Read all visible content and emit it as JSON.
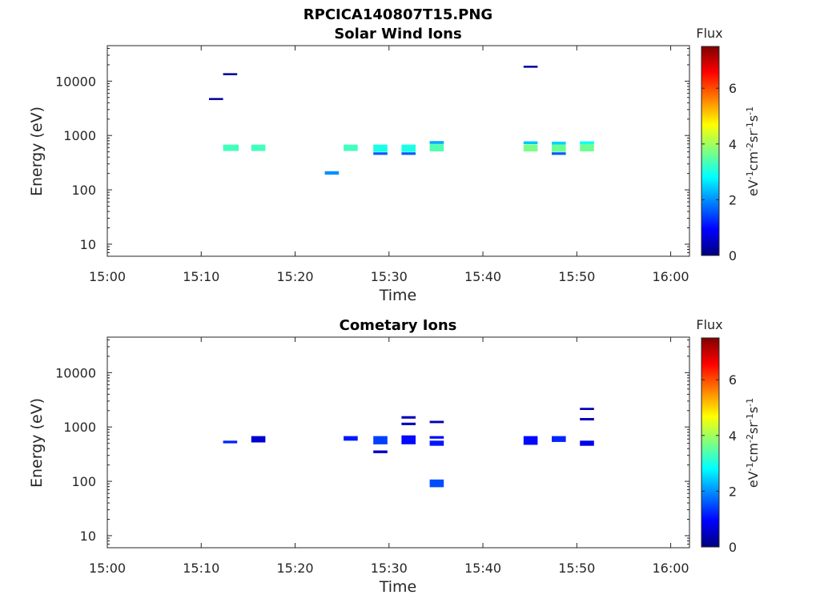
{
  "figure_title": "RPCICA140807T15.PNG",
  "colormap": [
    "#00007f",
    "#0000ff",
    "#007fff",
    "#00ffff",
    "#7fff7f",
    "#ffff00",
    "#ff7f00",
    "#ff0000",
    "#7f0000"
  ],
  "chart_data": [
    {
      "type": "heatmap",
      "title": "Solar Wind Ions",
      "xlabel": "Time",
      "ylabel": "Energy (eV)",
      "x_range": [
        "15:00",
        "16:02"
      ],
      "x_ticks": [
        "15:00",
        "15:10",
        "15:20",
        "15:30",
        "15:40",
        "15:50",
        "16:00"
      ],
      "y_scale": "log",
      "y_range": [
        6,
        45000
      ],
      "y_ticks": [
        "10",
        "100",
        "1000",
        "10000"
      ],
      "colorbar": {
        "label": "Flux",
        "units": "eV-1cm-2sr-1s-1",
        "range": [
          0,
          7.5
        ],
        "ticks": [
          "0",
          "2",
          "4",
          "6"
        ]
      },
      "cells": [
        {
          "t0": "15:10:50",
          "t1": "15:12:20",
          "e0": 4600,
          "e1": 4900,
          "flux": 0.2
        },
        {
          "t0": "15:12:20",
          "t1": "15:13:50",
          "e0": 13200,
          "e1": 14000,
          "flux": 0.2
        },
        {
          "t0": "15:12:20",
          "t1": "15:14:00",
          "e0": 520,
          "e1": 680,
          "flux": 3.3
        },
        {
          "t0": "15:15:20",
          "t1": "15:16:50",
          "e0": 520,
          "e1": 680,
          "flux": 3.3
        },
        {
          "t0": "15:23:10",
          "t1": "15:24:40",
          "e0": 190,
          "e1": 220,
          "flux": 2.0
        },
        {
          "t0": "15:25:10",
          "t1": "15:26:40",
          "e0": 520,
          "e1": 680,
          "flux": 3.3
        },
        {
          "t0": "15:28:20",
          "t1": "15:29:50",
          "e0": 440,
          "e1": 490,
          "flux": 1.6
        },
        {
          "t0": "15:28:20",
          "t1": "15:29:50",
          "e0": 500,
          "e1": 680,
          "flux": 3.0
        },
        {
          "t0": "15:31:20",
          "t1": "15:32:50",
          "e0": 440,
          "e1": 490,
          "flux": 1.6
        },
        {
          "t0": "15:31:20",
          "t1": "15:32:50",
          "e0": 500,
          "e1": 680,
          "flux": 3.0
        },
        {
          "t0": "15:34:20",
          "t1": "15:35:50",
          "e0": 700,
          "e1": 790,
          "flux": 2.2
        },
        {
          "t0": "15:34:20",
          "t1": "15:35:50",
          "e0": 510,
          "e1": 690,
          "flux": 3.4
        },
        {
          "t0": "15:44:20",
          "t1": "15:45:50",
          "e0": 18200,
          "e1": 19200,
          "flux": 0.2
        },
        {
          "t0": "15:44:20",
          "t1": "15:45:50",
          "e0": 690,
          "e1": 780,
          "flux": 2.4
        },
        {
          "t0": "15:44:20",
          "t1": "15:45:50",
          "e0": 510,
          "e1": 680,
          "flux": 3.7
        },
        {
          "t0": "15:47:20",
          "t1": "15:48:50",
          "e0": 680,
          "e1": 770,
          "flux": 2.5
        },
        {
          "t0": "15:47:20",
          "t1": "15:48:50",
          "e0": 440,
          "e1": 490,
          "flux": 1.6
        },
        {
          "t0": "15:47:20",
          "t1": "15:48:50",
          "e0": 500,
          "e1": 680,
          "flux": 3.6
        },
        {
          "t0": "15:50:20",
          "t1": "15:51:50",
          "e0": 690,
          "e1": 780,
          "flux": 2.9
        },
        {
          "t0": "15:50:20",
          "t1": "15:51:50",
          "e0": 510,
          "e1": 690,
          "flux": 3.6
        }
      ]
    },
    {
      "type": "heatmap",
      "title": "Cometary Ions",
      "xlabel": "Time",
      "ylabel": "Energy (eV)",
      "x_range": [
        "15:00",
        "16:02"
      ],
      "x_ticks": [
        "15:00",
        "15:10",
        "15:20",
        "15:30",
        "15:40",
        "15:50",
        "16:00"
      ],
      "y_scale": "log",
      "y_range": [
        6,
        45000
      ],
      "y_ticks": [
        "10",
        "100",
        "1000",
        "10000"
      ],
      "colorbar": {
        "label": "Flux",
        "units": "eV-1cm-2sr-1s-1",
        "range": [
          0,
          7.5
        ],
        "ticks": [
          "0",
          "2",
          "4",
          "6"
        ]
      },
      "cells": [
        {
          "t0": "15:12:20",
          "t1": "15:13:50",
          "e0": 500,
          "e1": 560,
          "flux": 1.2
        },
        {
          "t0": "15:15:20",
          "t1": "15:16:50",
          "e0": 520,
          "e1": 680,
          "flux": 0.6
        },
        {
          "t0": "15:25:10",
          "t1": "15:26:40",
          "e0": 560,
          "e1": 680,
          "flux": 1.1
        },
        {
          "t0": "15:28:20",
          "t1": "15:29:50",
          "e0": 480,
          "e1": 680,
          "flux": 1.4
        },
        {
          "t0": "15:28:20",
          "t1": "15:29:50",
          "e0": 330,
          "e1": 370,
          "flux": 0.5
        },
        {
          "t0": "15:31:20",
          "t1": "15:32:50",
          "e0": 1420,
          "e1": 1580,
          "flux": 0.4
        },
        {
          "t0": "15:31:20",
          "t1": "15:32:50",
          "e0": 1080,
          "e1": 1200,
          "flux": 0.4
        },
        {
          "t0": "15:31:20",
          "t1": "15:32:50",
          "e0": 480,
          "e1": 700,
          "flux": 1.0
        },
        {
          "t0": "15:34:20",
          "t1": "15:35:50",
          "e0": 1180,
          "e1": 1300,
          "flux": 0.4
        },
        {
          "t0": "15:34:20",
          "t1": "15:35:50",
          "e0": 610,
          "e1": 680,
          "flux": 0.9
        },
        {
          "t0": "15:34:20",
          "t1": "15:35:50",
          "e0": 450,
          "e1": 560,
          "flux": 1.1
        },
        {
          "t0": "15:34:20",
          "t1": "15:35:50",
          "e0": 78,
          "e1": 108,
          "flux": 1.5
        },
        {
          "t0": "15:44:20",
          "t1": "15:45:50",
          "e0": 470,
          "e1": 680,
          "flux": 1.0
        },
        {
          "t0": "15:47:20",
          "t1": "15:48:50",
          "e0": 530,
          "e1": 680,
          "flux": 1.2
        },
        {
          "t0": "15:50:20",
          "t1": "15:51:50",
          "e0": 2050,
          "e1": 2250,
          "flux": 0.4
        },
        {
          "t0": "15:50:20",
          "t1": "15:51:50",
          "e0": 1320,
          "e1": 1460,
          "flux": 0.4
        },
        {
          "t0": "15:50:20",
          "t1": "15:51:50",
          "e0": 450,
          "e1": 560,
          "flux": 0.8
        }
      ]
    }
  ]
}
